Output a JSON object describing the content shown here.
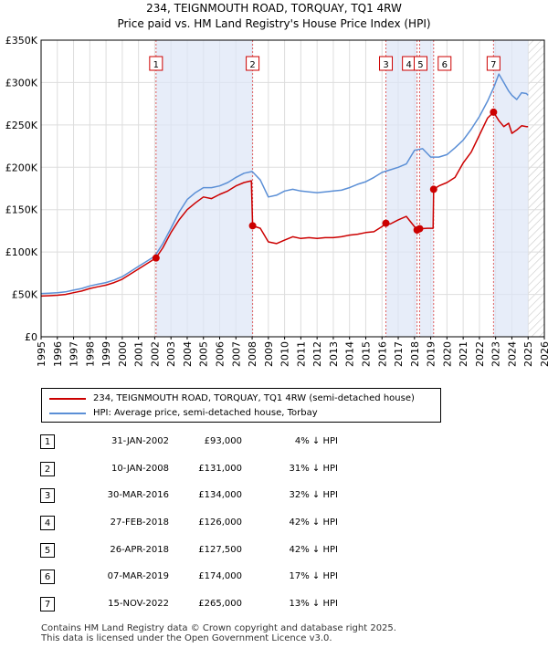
{
  "chart_data": {
    "type": "line",
    "title": "234, TEIGNMOUTH ROAD, TORQUAY, TQ1 4RW",
    "subtitle": "Price paid vs. HM Land Registry's House Price Index (HPI)",
    "xlabel": "",
    "ylabel": "",
    "xlim": [
      1995,
      2026
    ],
    "ylim": [
      0,
      350000
    ],
    "x_ticks": [
      "1995",
      "1996",
      "1997",
      "1998",
      "1999",
      "2000",
      "2001",
      "2002",
      "2003",
      "2004",
      "2005",
      "2006",
      "2007",
      "2008",
      "2009",
      "2010",
      "2011",
      "2012",
      "2013",
      "2014",
      "2015",
      "2016",
      "2017",
      "2018",
      "2019",
      "2020",
      "2021",
      "2022",
      "2023",
      "2024",
      "2025",
      "2026"
    ],
    "y_ticks": [
      {
        "value": 0,
        "label": "£0"
      },
      {
        "value": 50000,
        "label": "£50K"
      },
      {
        "value": 100000,
        "label": "£100K"
      },
      {
        "value": 150000,
        "label": "£150K"
      },
      {
        "value": 200000,
        "label": "£200K"
      },
      {
        "value": 250000,
        "label": "£250K"
      },
      {
        "value": 300000,
        "label": "£300K"
      },
      {
        "value": 350000,
        "label": "£350K"
      }
    ],
    "grid": true,
    "hatched_after": 2025.0,
    "shaded_periods": [
      [
        2002.08,
        2008.03
      ],
      [
        2016.24,
        2018.16
      ],
      [
        2018.32,
        2019.18
      ],
      [
        2022.87,
        2025.0
      ]
    ],
    "series": [
      {
        "name": "234, TEIGNMOUTH ROAD, TORQUAY, TQ1 4RW (semi-detached house)",
        "color": "#cc0000",
        "x": [
          1995.0,
          1995.5,
          1996.0,
          1996.5,
          1997.0,
          1997.5,
          1998.0,
          1998.5,
          1999.0,
          1999.5,
          2000.0,
          2000.5,
          2001.0,
          2001.5,
          2002.08,
          2002.5,
          2003.0,
          2003.5,
          2004.0,
          2004.5,
          2005.0,
          2005.5,
          2006.0,
          2006.5,
          2007.0,
          2007.5,
          2007.95,
          2008.03,
          2008.5,
          2009.0,
          2009.5,
          2010.0,
          2010.5,
          2011.0,
          2011.5,
          2012.0,
          2012.5,
          2013.0,
          2013.5,
          2014.0,
          2014.5,
          2015.0,
          2015.5,
          2016.0,
          2016.24,
          2016.5,
          2017.0,
          2017.5,
          2018.16,
          2018.32,
          2018.8,
          2019.15,
          2019.18,
          2019.5,
          2020.0,
          2020.5,
          2021.0,
          2021.5,
          2022.0,
          2022.5,
          2022.87,
          2023.2,
          2023.5,
          2023.8,
          2024.0,
          2024.3,
          2024.6,
          2024.9,
          2025.0
        ],
        "values": [
          48000,
          48500,
          49000,
          50000,
          52000,
          54000,
          57000,
          59000,
          61000,
          64000,
          68000,
          74000,
          80000,
          86000,
          93000,
          105000,
          123000,
          138000,
          150000,
          158000,
          165000,
          163000,
          168000,
          172000,
          178000,
          182000,
          184000,
          131000,
          128000,
          112000,
          110000,
          114000,
          118000,
          116000,
          117000,
          116000,
          117000,
          117000,
          118000,
          120000,
          121000,
          123000,
          124000,
          130000,
          134000,
          133000,
          138000,
          142000,
          126000,
          127500,
          128000,
          128000,
          174000,
          178000,
          182000,
          188000,
          205000,
          218000,
          238000,
          258000,
          265000,
          255000,
          248000,
          252000,
          240000,
          244000,
          249000,
          248000,
          248000
        ]
      },
      {
        "name": "HPI: Average price, semi-detached house, Torbay",
        "color": "#5b8fd6",
        "x": [
          1995.0,
          1995.5,
          1996.0,
          1996.5,
          1997.0,
          1997.5,
          1998.0,
          1998.5,
          1999.0,
          1999.5,
          2000.0,
          2000.5,
          2001.0,
          2001.5,
          2002.0,
          2002.5,
          2003.0,
          2003.5,
          2004.0,
          2004.5,
          2005.0,
          2005.5,
          2006.0,
          2006.5,
          2007.0,
          2007.5,
          2008.0,
          2008.5,
          2009.0,
          2009.5,
          2010.0,
          2010.5,
          2011.0,
          2011.5,
          2012.0,
          2012.5,
          2013.0,
          2013.5,
          2014.0,
          2014.5,
          2015.0,
          2015.5,
          2016.0,
          2016.5,
          2017.0,
          2017.5,
          2018.0,
          2018.5,
          2019.0,
          2019.5,
          2020.0,
          2020.5,
          2021.0,
          2021.5,
          2022.0,
          2022.5,
          2022.9,
          2023.2,
          2023.5,
          2023.8,
          2024.0,
          2024.3,
          2024.6,
          2024.9,
          2025.0
        ],
        "values": [
          51000,
          51500,
          52000,
          53000,
          55000,
          57000,
          60000,
          62000,
          64000,
          67000,
          71000,
          77000,
          83000,
          89000,
          95000,
          110000,
          128000,
          147000,
          162000,
          170000,
          176000,
          176000,
          178000,
          182000,
          188000,
          193000,
          195000,
          185000,
          165000,
          167000,
          172000,
          174000,
          172000,
          171000,
          170000,
          171000,
          172000,
          173000,
          176000,
          180000,
          183000,
          188000,
          194000,
          197000,
          200000,
          204000,
          220000,
          222000,
          212000,
          212000,
          215000,
          223000,
          232000,
          245000,
          260000,
          278000,
          295000,
          310000,
          300000,
          290000,
          285000,
          280000,
          288000,
          287000,
          285000
        ]
      }
    ],
    "transactions": [
      {
        "num": "1",
        "x": 2002.08,
        "value": 93000
      },
      {
        "num": "2",
        "x": 2008.03,
        "value": 131000
      },
      {
        "num": "3",
        "x": 2016.24,
        "value": 134000
      },
      {
        "num": "4",
        "x": 2018.16,
        "value": 126000
      },
      {
        "num": "5",
        "x": 2018.32,
        "value": 127500
      },
      {
        "num": "6",
        "x": 2019.18,
        "value": 174000
      },
      {
        "num": "7",
        "x": 2022.87,
        "value": 265000
      }
    ]
  },
  "legend": {
    "property_label": "234, TEIGNMOUTH ROAD, TORQUAY, TQ1 4RW (semi-detached house)",
    "hpi_label": "HPI: Average price, semi-detached house, Torbay"
  },
  "table": [
    {
      "num": "1",
      "date": "31-JAN-2002",
      "price": "£93,000",
      "hpi": "4% ↓ HPI"
    },
    {
      "num": "2",
      "date": "10-JAN-2008",
      "price": "£131,000",
      "hpi": "31% ↓ HPI"
    },
    {
      "num": "3",
      "date": "30-MAR-2016",
      "price": "£134,000",
      "hpi": "32% ↓ HPI"
    },
    {
      "num": "4",
      "date": "27-FEB-2018",
      "price": "£126,000",
      "hpi": "42% ↓ HPI"
    },
    {
      "num": "5",
      "date": "26-APR-2018",
      "price": "£127,500",
      "hpi": "42% ↓ HPI"
    },
    {
      "num": "6",
      "date": "07-MAR-2019",
      "price": "£174,000",
      "hpi": "17% ↓ HPI"
    },
    {
      "num": "7",
      "date": "15-NOV-2022",
      "price": "£265,000",
      "hpi": "13% ↓ HPI"
    }
  ],
  "footer": {
    "line1": "Contains HM Land Registry data © Crown copyright and database right 2025.",
    "line2": "This data is licensed under the Open Government Licence v3.0."
  }
}
